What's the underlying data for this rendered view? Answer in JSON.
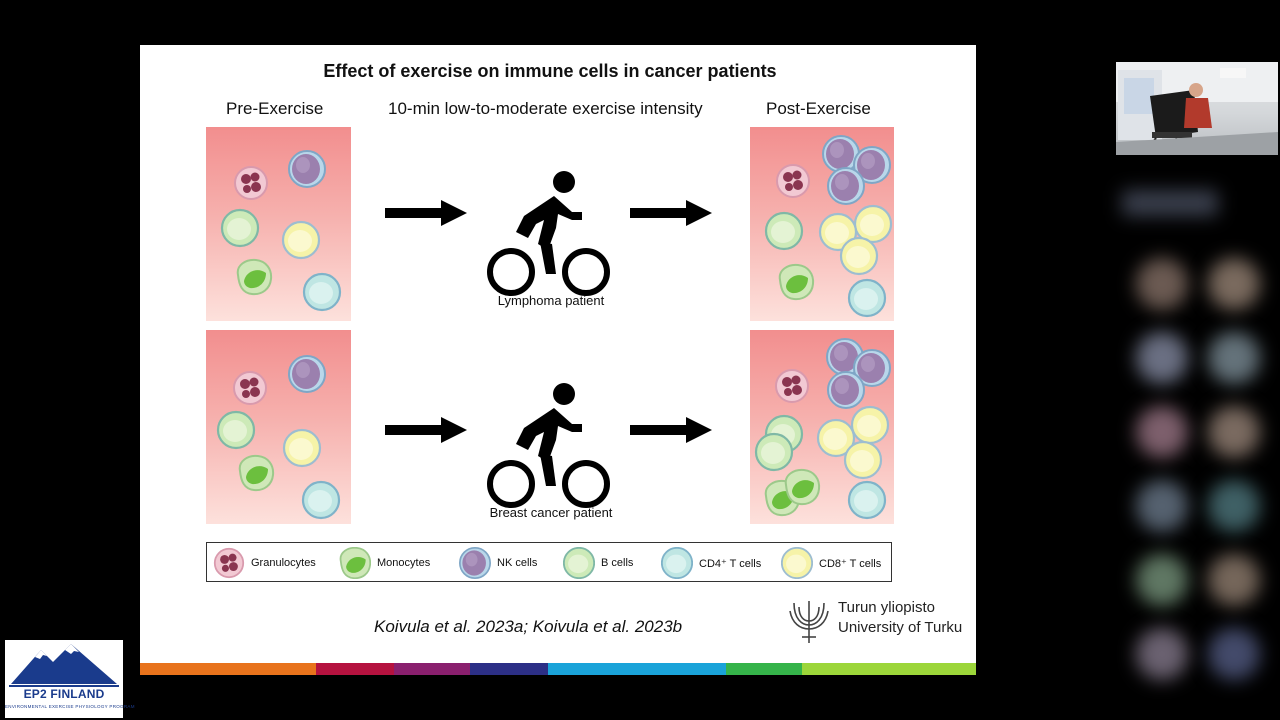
{
  "slide": {
    "title": "Effect of exercise on immune cells in cancer patients",
    "col_pre": "Pre-Exercise",
    "col_mid": "10-min low-to-moderate exercise intensity",
    "col_post": "Post-Exercise",
    "rows": [
      {
        "patient": "Lymphoma patient"
      },
      {
        "patient": "Breast cancer patient"
      }
    ],
    "legend": [
      {
        "label": "Granulocytes",
        "cell": "granulocyte"
      },
      {
        "label": "Monocytes",
        "cell": "monocyte"
      },
      {
        "label": "NK cells",
        "cell": "nk"
      },
      {
        "label": "B cells",
        "cell": "b"
      },
      {
        "label": "CD4⁺ T cells",
        "cell": "cd4"
      },
      {
        "label": "CD8⁺ T cells",
        "cell": "cd8"
      }
    ],
    "citation": "Koivula et al. 2023a; Koivula et al. 2023b",
    "university": {
      "line1": "Turun yliopisto",
      "line2": "University of Turku"
    },
    "colors": {
      "granulocyte": "#c97a8e",
      "monocyte": "#9fd67a",
      "nk": "#9b80ae",
      "b": "#cdeab8",
      "cd4": "#bfe6e3",
      "cd8": "#f6f3a8",
      "bar": [
        "#e8731c",
        "#b5123f",
        "#8a1f6e",
        "#2c2f86",
        "#1aa3d9",
        "#35b44a",
        "#9cd63a"
      ]
    }
  },
  "overlay": {
    "logo_title": "EP2 FINLAND",
    "logo_subtitle": "ENVIRONMENTAL EXERCISE PHYSIOLOGY PROGRAM"
  }
}
